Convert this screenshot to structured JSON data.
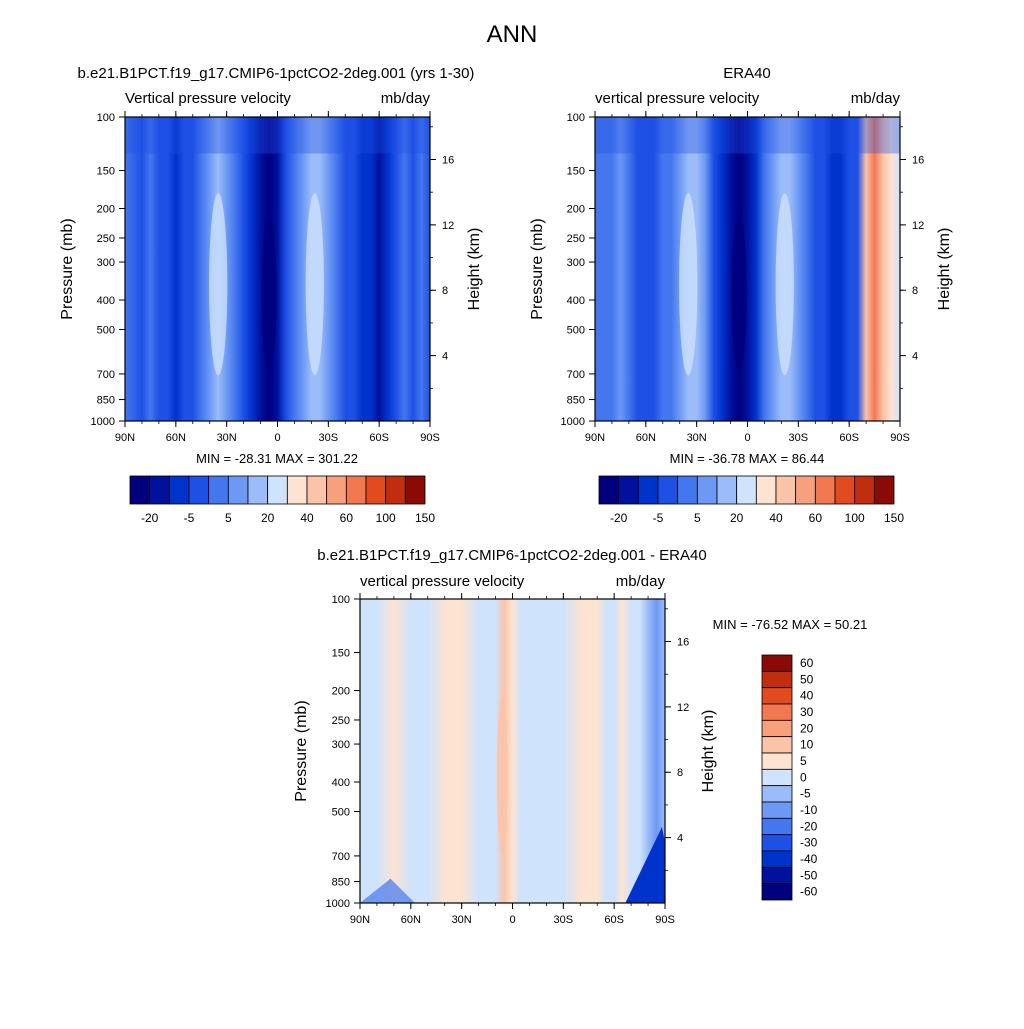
{
  "figure": {
    "title": "ANN"
  },
  "colors": {
    "panel_a_scale": [
      "#00007f",
      "#00119e",
      "#0033cc",
      "#1f50e6",
      "#4477ee",
      "#6d99f5",
      "#9bbcf9",
      "#cfe3fc",
      "#fde3d2",
      "#fbc3a8",
      "#f7a07e",
      "#f27852",
      "#e24a20",
      "#c02d0f",
      "#8c0a05"
    ],
    "panel_c_scale": [
      "#00007f",
      "#00119e",
      "#0033cc",
      "#1f50e6",
      "#4477ee",
      "#6d99f5",
      "#9bbcf9",
      "#cfe3fc",
      "#fde3d2",
      "#fbc3a8",
      "#f7a07e",
      "#f27852",
      "#e24a20",
      "#c02d0f",
      "#8c0a05"
    ]
  },
  "chart_data": [
    {
      "type": "heatmap",
      "title": "b.e21.B1PCT.f19_g17.CMIP6-1pctCO2-2deg.001 (yrs 1-30)",
      "subtitle_left": "Vertical pressure velocity",
      "subtitle_right": "mb/day",
      "ylabel": "Pressure (mb)",
      "ylabel_right": "Height (km)",
      "x_ticks": [
        "90N",
        "60N",
        "30N",
        "0",
        "30S",
        "60S",
        "90S"
      ],
      "y_ticks": [
        "100",
        "150",
        "200",
        "250",
        "300",
        "400",
        "500",
        "700",
        "850",
        "1000"
      ],
      "y_ticks_right": [
        "16",
        "12",
        "8",
        "4"
      ],
      "stats": "MIN = -28.31  MAX = 301.22",
      "colorbar_labels": [
        "-20",
        "-5",
        "5",
        "20",
        "40",
        "60",
        "100",
        "150"
      ],
      "min": -28.31,
      "max": 301.22,
      "zonal_profile": [
        {
          "lat": 90,
          "level": 4
        },
        {
          "lat": 80,
          "level": 3
        },
        {
          "lat": 75,
          "level": 4
        },
        {
          "lat": 70,
          "level": 3
        },
        {
          "lat": 65,
          "level": 3
        },
        {
          "lat": 60,
          "level": 2
        },
        {
          "lat": 55,
          "level": 3
        },
        {
          "lat": 50,
          "level": 3
        },
        {
          "lat": 45,
          "level": 4
        },
        {
          "lat": 40,
          "level": 5
        },
        {
          "lat": 35,
          "level": 6
        },
        {
          "lat": 30,
          "level": 5
        },
        {
          "lat": 25,
          "level": 4
        },
        {
          "lat": 20,
          "level": 3
        },
        {
          "lat": 15,
          "level": 2
        },
        {
          "lat": 10,
          "level": 1
        },
        {
          "lat": 5,
          "level": 0
        },
        {
          "lat": 0,
          "level": 1
        },
        {
          "lat": -5,
          "level": 3
        },
        {
          "lat": -10,
          "level": 4
        },
        {
          "lat": -15,
          "level": 5
        },
        {
          "lat": -20,
          "level": 6
        },
        {
          "lat": -25,
          "level": 6
        },
        {
          "lat": -30,
          "level": 5
        },
        {
          "lat": -35,
          "level": 4
        },
        {
          "lat": -40,
          "level": 3
        },
        {
          "lat": -45,
          "level": 3
        },
        {
          "lat": -50,
          "level": 2
        },
        {
          "lat": -55,
          "level": 2
        },
        {
          "lat": -60,
          "level": 1
        },
        {
          "lat": -65,
          "level": 2
        },
        {
          "lat": -70,
          "level": 3
        },
        {
          "lat": -75,
          "level": 4
        },
        {
          "lat": -80,
          "level": 3
        },
        {
          "lat": -85,
          "level": 4
        },
        {
          "lat": -90,
          "level": 3
        }
      ]
    },
    {
      "type": "heatmap",
      "title": "ERA40",
      "subtitle_left": "vertical pressure velocity",
      "subtitle_right": "mb/day",
      "ylabel": "Pressure (mb)",
      "ylabel_right": "Height (km)",
      "x_ticks": [
        "90N",
        "60N",
        "30N",
        "0",
        "30S",
        "60S",
        "90S"
      ],
      "y_ticks": [
        "100",
        "150",
        "200",
        "250",
        "300",
        "400",
        "500",
        "700",
        "850",
        "1000"
      ],
      "y_ticks_right": [
        "16",
        "12",
        "8",
        "4"
      ],
      "stats": "MIN = -36.78  MAX =  86.44",
      "colorbar_labels": [
        "-20",
        "-5",
        "5",
        "20",
        "40",
        "60",
        "100",
        "150"
      ],
      "min": -36.78,
      "max": 86.44,
      "zonal_profile": [
        {
          "lat": 90,
          "level": 4
        },
        {
          "lat": 80,
          "level": 4
        },
        {
          "lat": 75,
          "level": 5
        },
        {
          "lat": 70,
          "level": 4
        },
        {
          "lat": 65,
          "level": 3
        },
        {
          "lat": 60,
          "level": 3
        },
        {
          "lat": 55,
          "level": 3
        },
        {
          "lat": 50,
          "level": 4
        },
        {
          "lat": 45,
          "level": 4
        },
        {
          "lat": 40,
          "level": 5
        },
        {
          "lat": 35,
          "level": 6
        },
        {
          "lat": 30,
          "level": 6
        },
        {
          "lat": 25,
          "level": 5
        },
        {
          "lat": 20,
          "level": 3
        },
        {
          "lat": 15,
          "level": 2
        },
        {
          "lat": 10,
          "level": 1
        },
        {
          "lat": 5,
          "level": 0
        },
        {
          "lat": 0,
          "level": 1
        },
        {
          "lat": -5,
          "level": 2
        },
        {
          "lat": -10,
          "level": 4
        },
        {
          "lat": -15,
          "level": 5
        },
        {
          "lat": -20,
          "level": 6
        },
        {
          "lat": -25,
          "level": 6
        },
        {
          "lat": -30,
          "level": 5
        },
        {
          "lat": -35,
          "level": 4
        },
        {
          "lat": -40,
          "level": 3
        },
        {
          "lat": -45,
          "level": 3
        },
        {
          "lat": -50,
          "level": 2
        },
        {
          "lat": -55,
          "level": 2
        },
        {
          "lat": -60,
          "level": 3
        },
        {
          "lat": -65,
          "level": 3
        },
        {
          "lat": -70,
          "level": 9
        },
        {
          "lat": -75,
          "level": 11
        },
        {
          "lat": -80,
          "level": 9
        },
        {
          "lat": -85,
          "level": 8
        },
        {
          "lat": -90,
          "level": 7
        }
      ]
    },
    {
      "type": "heatmap",
      "title": "b.e21.B1PCT.f19_g17.CMIP6-1pctCO2-2deg.001 - ERA40",
      "subtitle_left": "vertical pressure velocity",
      "subtitle_right": "mb/day",
      "ylabel": "Pressure (mb)",
      "ylabel_right": "Height (km)",
      "x_ticks": [
        "90N",
        "60N",
        "30N",
        "0",
        "30S",
        "60S",
        "90S"
      ],
      "y_ticks": [
        "100",
        "150",
        "200",
        "250",
        "300",
        "400",
        "500",
        "700",
        "850",
        "1000"
      ],
      "y_ticks_right": [
        "16",
        "12",
        "8",
        "4"
      ],
      "stats": "MIN = -76.52  MAX =  50.21",
      "colorbar_labels": [
        "60",
        "50",
        "40",
        "30",
        "20",
        "10",
        "5",
        "0",
        "-5",
        "-10",
        "-20",
        "-30",
        "-40",
        "-50",
        "-60"
      ],
      "min": -76.52,
      "max": 50.21,
      "zonal_profile": [
        {
          "lat": 90,
          "level": 7
        },
        {
          "lat": 80,
          "level": 7
        },
        {
          "lat": 70,
          "level": 8
        },
        {
          "lat": 60,
          "level": 7
        },
        {
          "lat": 50,
          "level": 7
        },
        {
          "lat": 40,
          "level": 8
        },
        {
          "lat": 30,
          "level": 8
        },
        {
          "lat": 20,
          "level": 7
        },
        {
          "lat": 15,
          "level": 7
        },
        {
          "lat": 10,
          "level": 7
        },
        {
          "lat": 5,
          "level": 9
        },
        {
          "lat": 0,
          "level": 8
        },
        {
          "lat": -5,
          "level": 7
        },
        {
          "lat": -10,
          "level": 7
        },
        {
          "lat": -20,
          "level": 7
        },
        {
          "lat": -30,
          "level": 7
        },
        {
          "lat": -40,
          "level": 8
        },
        {
          "lat": -50,
          "level": 8
        },
        {
          "lat": -55,
          "level": 7
        },
        {
          "lat": -60,
          "level": 7
        },
        {
          "lat": -65,
          "level": 8
        },
        {
          "lat": -70,
          "level": 7
        },
        {
          "lat": -75,
          "level": 7
        },
        {
          "lat": -80,
          "level": 6
        },
        {
          "lat": -85,
          "level": 5
        },
        {
          "lat": -90,
          "level": 6
        }
      ]
    }
  ]
}
